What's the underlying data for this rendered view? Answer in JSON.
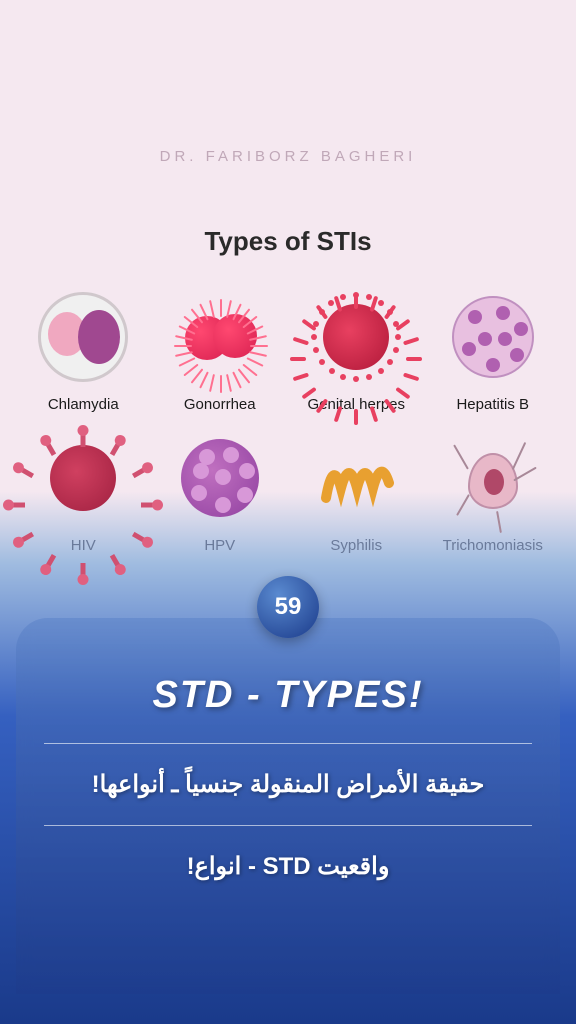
{
  "author": "DR. FARIBORZ BAGHERI",
  "chart_title": "Types of STIs",
  "badge_number": "59",
  "main_title": "STD - TYPES!",
  "subtitle_ar": "حقيقة الأمراض المنقولة جنسياً ـ أنواعها!",
  "subtitle_fa": "واقعیت STD - انواع!",
  "items": [
    {
      "label": "Chlamydia"
    },
    {
      "label": "Gonorrhea"
    },
    {
      "label": "Genital herpes"
    },
    {
      "label": "Hepatitis B"
    },
    {
      "label": "HIV"
    },
    {
      "label": "HPV"
    },
    {
      "label": "Syphilis"
    },
    {
      "label": "Trichomoniasis"
    }
  ],
  "colors": {
    "bg_top": "#f5e8f0",
    "bg_bottom": "#1a3a8a",
    "badge_grad_1": "#5a8ad0",
    "badge_grad_2": "#1a3a8a",
    "text_white": "#ffffff",
    "divider": "rgba(255,255,255,0.6)"
  }
}
